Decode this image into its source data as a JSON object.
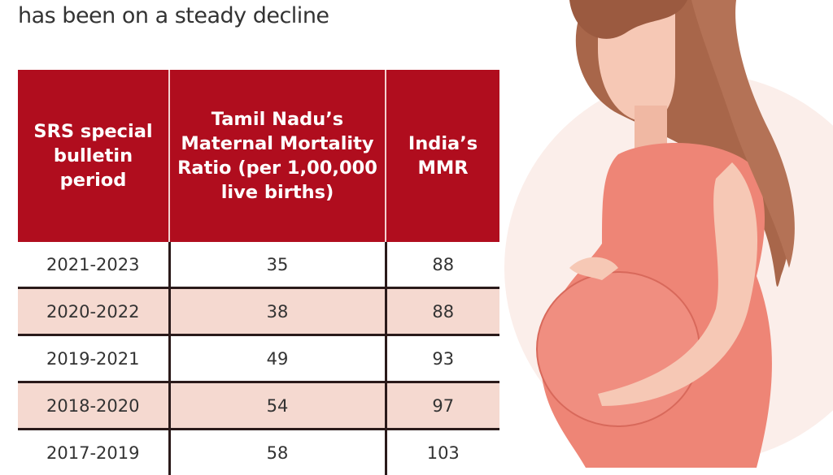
{
  "subtitle": "has been on a steady decline",
  "colors": {
    "header": "#b00d1e",
    "alt_row": "#f5d9d0",
    "text": "#333333"
  },
  "chart_data": {
    "type": "table",
    "columns": [
      "SRS special bulletin period",
      "Tamil Nadu’s Maternal Mortality Ratio (per 1,00,000 live births)",
      "India’s MMR"
    ],
    "rows": [
      [
        "2021-2023",
        "35",
        "88"
      ],
      [
        "2020-2022",
        "38",
        "88"
      ],
      [
        "2019-2021",
        "49",
        "93"
      ],
      [
        "2018-2020",
        "54",
        "97"
      ],
      [
        "2017-2019",
        "58",
        "103"
      ]
    ]
  }
}
